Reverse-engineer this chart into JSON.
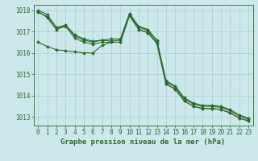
{
  "xlabel": "Graphe pression niveau de la mer (hPa)",
  "x": [
    0,
    1,
    2,
    3,
    4,
    5,
    6,
    7,
    8,
    9,
    10,
    11,
    12,
    13,
    14,
    15,
    16,
    17,
    18,
    19,
    20,
    21,
    22,
    23
  ],
  "series": [
    [
      1017.9,
      1017.7,
      1017.1,
      1017.3,
      1016.8,
      1016.6,
      1016.5,
      1016.6,
      1016.55,
      1016.6,
      1017.8,
      1017.2,
      1017.05,
      1016.55,
      1014.65,
      1014.4,
      1013.85,
      1013.6,
      1013.5,
      1013.5,
      1013.45,
      1013.3,
      1013.05,
      1012.9
    ],
    [
      1017.95,
      1017.65,
      1017.1,
      1017.25,
      1016.7,
      1016.5,
      1016.4,
      1016.5,
      1016.5,
      1016.5,
      1017.75,
      1017.1,
      1016.95,
      1016.45,
      1014.55,
      1014.3,
      1013.75,
      1013.5,
      1013.4,
      1013.4,
      1013.35,
      1013.2,
      1012.95,
      1012.82
    ],
    [
      1016.5,
      1016.3,
      1016.15,
      1016.1,
      1016.05,
      1016.0,
      1016.0,
      1016.35,
      1016.5,
      1016.5,
      1017.75,
      1017.1,
      1016.95,
      1016.45,
      1014.55,
      1014.3,
      1013.75,
      1013.5,
      1013.4,
      1013.4,
      1013.35,
      1013.2,
      1012.95,
      1012.82
    ],
    [
      1018.0,
      1017.8,
      1017.2,
      1017.3,
      1016.85,
      1016.65,
      1016.55,
      1016.6,
      1016.65,
      1016.65,
      1017.85,
      1017.25,
      1017.1,
      1016.6,
      1014.7,
      1014.45,
      1013.9,
      1013.65,
      1013.55,
      1013.55,
      1013.5,
      1013.35,
      1013.1,
      1012.95
    ]
  ],
  "line_color": "#2d6a2d",
  "marker": "D",
  "markersize": 2.0,
  "linewidth": 0.8,
  "ylim": [
    1012.6,
    1018.25
  ],
  "yticks": [
    1013,
    1014,
    1015,
    1016,
    1017,
    1018
  ],
  "bg_color": "#cce8ea",
  "grid_color": "#aacfd2",
  "axis_color": "#2d6a2d",
  "label_color": "#2d6a2d",
  "tick_color": "#2d6a2d",
  "xlabel_fontsize": 6.5,
  "tick_fontsize": 5.5
}
